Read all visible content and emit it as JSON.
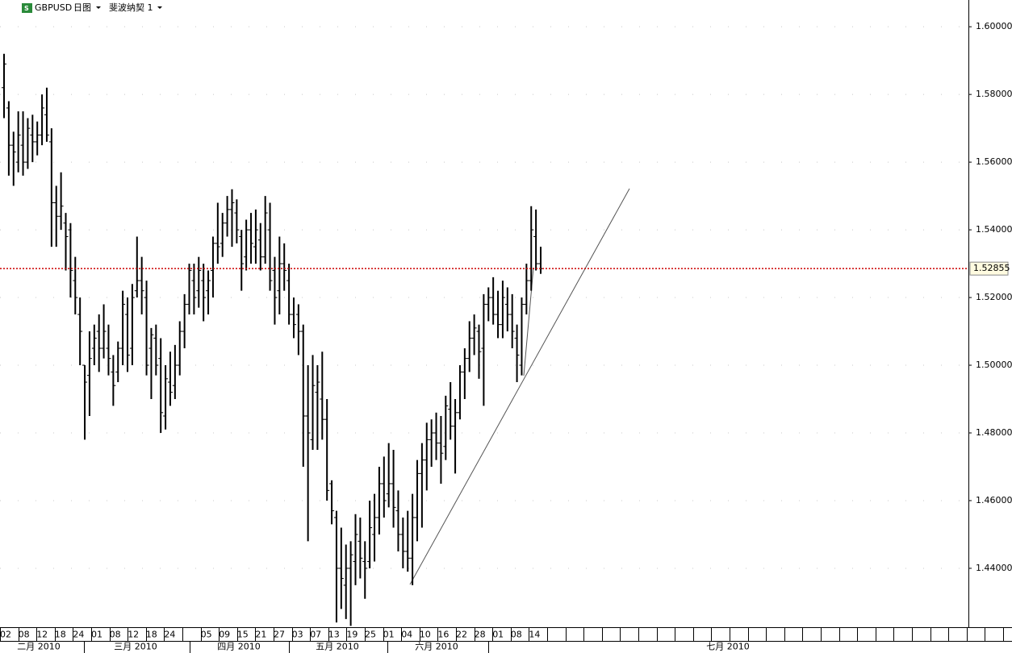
{
  "chart_data": {
    "type": "ohlc",
    "symbol": "GBPUSD",
    "timeframe": "日图",
    "study": "斐波纳契 1",
    "ylim": [
      1.4226,
      1.6079
    ],
    "yticks": [
      {
        "value": 1.44,
        "label": "1.44000"
      },
      {
        "value": 1.46,
        "label": "1.46000"
      },
      {
        "value": 1.48,
        "label": "1.48000"
      },
      {
        "value": 1.5,
        "label": "1.50000"
      },
      {
        "value": 1.52,
        "label": "1.52000"
      },
      {
        "value": 1.54,
        "label": "1.54000"
      },
      {
        "value": 1.56,
        "label": "1.56000"
      },
      {
        "value": 1.58,
        "label": "1.58000"
      },
      {
        "value": 1.6,
        "label": "1.60000"
      }
    ],
    "last_price": 1.52855,
    "last_price_color": "#cc0000",
    "bar_color": "#000000",
    "grid": true,
    "categories": [
      "02",
      "08",
      "12",
      "18",
      "24",
      "01",
      "08",
      "12",
      "18",
      "24",
      null,
      "05",
      "09",
      "15",
      "21",
      "27",
      "03",
      "07",
      "13",
      "19",
      "25",
      "01",
      "04",
      "10",
      "16",
      "22",
      "28",
      "01",
      "08",
      "14"
    ],
    "months": [
      "二月 2010",
      "三月 2010",
      "四月 2010",
      "五月 2010",
      "六月 2010",
      "七月 2010"
    ],
    "ohlc": [
      [
        1.582,
        1.592,
        1.573,
        1.589
      ],
      [
        1.576,
        1.578,
        1.556,
        1.565
      ],
      [
        1.565,
        1.569,
        1.553,
        1.563
      ],
      [
        1.56,
        1.575,
        1.557,
        1.568
      ],
      [
        1.565,
        1.575,
        1.556,
        1.56
      ],
      [
        1.56,
        1.573,
        1.558,
        1.57
      ],
      [
        1.568,
        1.574,
        1.56,
        1.566
      ],
      [
        1.566,
        1.572,
        1.562,
        1.568
      ],
      [
        1.568,
        1.58,
        1.565,
        1.576
      ],
      [
        1.574,
        1.582,
        1.566,
        1.568
      ],
      [
        1.566,
        1.57,
        1.535,
        1.548
      ],
      [
        1.548,
        1.553,
        1.535,
        1.544
      ],
      [
        1.544,
        1.557,
        1.54,
        1.547
      ],
      [
        1.542,
        1.545,
        1.528,
        1.538
      ],
      [
        1.54,
        1.542,
        1.52,
        1.528
      ],
      [
        1.525,
        1.532,
        1.515,
        1.52
      ],
      [
        1.515,
        1.52,
        1.5,
        1.51
      ],
      [
        1.5,
        1.5,
        1.478,
        1.495
      ],
      [
        1.497,
        1.51,
        1.485,
        1.502
      ],
      [
        1.505,
        1.512,
        1.5,
        1.508
      ],
      [
        1.51,
        1.515,
        1.498,
        1.505
      ],
      [
        1.505,
        1.518,
        1.502,
        1.51
      ],
      [
        1.505,
        1.512,
        1.497,
        1.502
      ],
      [
        1.498,
        1.503,
        1.488,
        1.494
      ],
      [
        1.498,
        1.507,
        1.495,
        1.505
      ],
      [
        1.505,
        1.522,
        1.5,
        1.518
      ],
      [
        1.515,
        1.52,
        1.498,
        1.503
      ],
      [
        1.505,
        1.524,
        1.5,
        1.52
      ],
      [
        1.522,
        1.538,
        1.52,
        1.525
      ],
      [
        1.525,
        1.532,
        1.515,
        1.522
      ],
      [
        1.52,
        1.525,
        1.497,
        1.5
      ],
      [
        1.505,
        1.511,
        1.49,
        1.509
      ],
      [
        1.508,
        1.512,
        1.497,
        1.5
      ],
      [
        1.502,
        1.508,
        1.48,
        1.486
      ],
      [
        1.485,
        1.5,
        1.481,
        1.496
      ],
      [
        1.495,
        1.504,
        1.488,
        1.492
      ],
      [
        1.494,
        1.506,
        1.49,
        1.5
      ],
      [
        1.5,
        1.513,
        1.497,
        1.51
      ],
      [
        1.51,
        1.521,
        1.505,
        1.518
      ],
      [
        1.518,
        1.53,
        1.515,
        1.528
      ],
      [
        1.525,
        1.53,
        1.515,
        1.52
      ],
      [
        1.522,
        1.532,
        1.517,
        1.528
      ],
      [
        1.525,
        1.53,
        1.513,
        1.52
      ],
      [
        1.522,
        1.528,
        1.515,
        1.525
      ],
      [
        1.528,
        1.538,
        1.52,
        1.536
      ],
      [
        1.536,
        1.548,
        1.53,
        1.535
      ],
      [
        1.536,
        1.545,
        1.532,
        1.542
      ],
      [
        1.542,
        1.55,
        1.538,
        1.546
      ],
      [
        1.546,
        1.552,
        1.535,
        1.548
      ],
      [
        1.545,
        1.549,
        1.536,
        1.54
      ],
      [
        1.538,
        1.54,
        1.522,
        1.53
      ],
      [
        1.532,
        1.543,
        1.528,
        1.54
      ],
      [
        1.54,
        1.545,
        1.53,
        1.536
      ],
      [
        1.535,
        1.546,
        1.53,
        1.54
      ],
      [
        1.537,
        1.542,
        1.528,
        1.532
      ],
      [
        1.532,
        1.55,
        1.53,
        1.545
      ],
      [
        1.54,
        1.548,
        1.522,
        1.525
      ],
      [
        1.528,
        1.532,
        1.512,
        1.52
      ],
      [
        1.522,
        1.538,
        1.515,
        1.53
      ],
      [
        1.53,
        1.536,
        1.522,
        1.528
      ],
      [
        1.525,
        1.53,
        1.512,
        1.515
      ],
      [
        1.515,
        1.52,
        1.508,
        1.512
      ],
      [
        1.515,
        1.518,
        1.503,
        1.51
      ],
      [
        1.51,
        1.512,
        1.47,
        1.485
      ],
      [
        1.485,
        1.5,
        1.448,
        1.48
      ],
      [
        1.478,
        1.503,
        1.475,
        1.494
      ],
      [
        1.492,
        1.5,
        1.475,
        1.495
      ],
      [
        1.49,
        1.504,
        1.478,
        1.484
      ],
      [
        1.484,
        1.49,
        1.46,
        1.463
      ],
      [
        1.465,
        1.466,
        1.453,
        1.457
      ],
      [
        1.455,
        1.457,
        1.424,
        1.44
      ],
      [
        1.44,
        1.452,
        1.428,
        1.437
      ],
      [
        1.435,
        1.447,
        1.425,
        1.44
      ],
      [
        1.44,
        1.448,
        1.423,
        1.444
      ],
      [
        1.442,
        1.456,
        1.435,
        1.45
      ],
      [
        1.448,
        1.455,
        1.437,
        1.443
      ],
      [
        1.442,
        1.448,
        1.431,
        1.44
      ],
      [
        1.442,
        1.46,
        1.44,
        1.452
      ],
      [
        1.45,
        1.462,
        1.442,
        1.455
      ],
      [
        1.455,
        1.47,
        1.45,
        1.465
      ],
      [
        1.465,
        1.473,
        1.455,
        1.46
      ],
      [
        1.462,
        1.477,
        1.458,
        1.465
      ],
      [
        1.465,
        1.475,
        1.452,
        1.458
      ],
      [
        1.457,
        1.463,
        1.445,
        1.45
      ],
      [
        1.45,
        1.455,
        1.44,
        1.445
      ],
      [
        1.445,
        1.457,
        1.439,
        1.443
      ],
      [
        1.443,
        1.462,
        1.435,
        1.455
      ],
      [
        1.455,
        1.472,
        1.448,
        1.468
      ],
      [
        1.468,
        1.477,
        1.452,
        1.472
      ],
      [
        1.472,
        1.483,
        1.463,
        1.478
      ],
      [
        1.478,
        1.484,
        1.47,
        1.48
      ],
      [
        1.48,
        1.486,
        1.472,
        1.477
      ],
      [
        1.477,
        1.485,
        1.465,
        1.474
      ],
      [
        1.476,
        1.491,
        1.472,
        1.488
      ],
      [
        1.487,
        1.495,
        1.478,
        1.482
      ],
      [
        1.482,
        1.49,
        1.468,
        1.486
      ],
      [
        1.486,
        1.5,
        1.484,
        1.498
      ],
      [
        1.498,
        1.505,
        1.49,
        1.502
      ],
      [
        1.502,
        1.513,
        1.498,
        1.508
      ],
      [
        1.508,
        1.515,
        1.503,
        1.511
      ],
      [
        1.51,
        1.512,
        1.496,
        1.504
      ],
      [
        1.505,
        1.521,
        1.488,
        1.518
      ],
      [
        1.518,
        1.523,
        1.513,
        1.52
      ],
      [
        1.52,
        1.526,
        1.512,
        1.515
      ],
      [
        1.515,
        1.522,
        1.508,
        1.512
      ],
      [
        1.512,
        1.525,
        1.508,
        1.52
      ],
      [
        1.518,
        1.523,
        1.51,
        1.515
      ],
      [
        1.515,
        1.521,
        1.505,
        1.51
      ],
      [
        1.508,
        1.512,
        1.495,
        1.503
      ],
      [
        1.5,
        1.52,
        1.497,
        1.518
      ],
      [
        1.518,
        1.53,
        1.515,
        1.525
      ],
      [
        1.525,
        1.547,
        1.522,
        1.54
      ],
      [
        1.538,
        1.546,
        1.528,
        1.53
      ],
      [
        1.53,
        1.535,
        1.527,
        1.52855
      ]
    ]
  }
}
